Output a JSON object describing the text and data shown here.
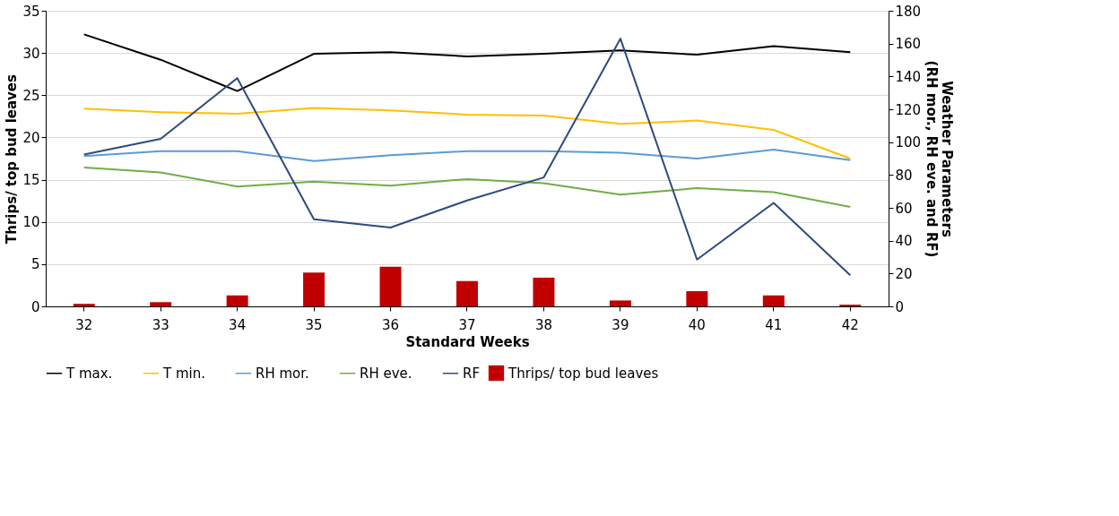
{
  "chart_data": {
    "type": "bar",
    "xlabel": "Standard Weeks",
    "ylabel": "Thrips/ top bud leaves",
    "y2label": "Weather Parameters (RH mor., RH eve. and RF)",
    "categories": [
      "32",
      "33",
      "34",
      "35",
      "36",
      "37",
      "38",
      "39",
      "40",
      "41",
      "42"
    ],
    "series": [
      {
        "name": "Thrips/ top bud leaves",
        "color": "#c00000",
        "values": [
          0.3,
          0.5,
          1.3,
          4.0,
          4.7,
          3.0,
          3.4,
          0.7,
          1.8,
          1.3,
          0.2
        ]
      },
      {
        "name": "T max.",
        "type": "line",
        "color": "#000000",
        "values": [
          32.2,
          29.2,
          25.5,
          29.9,
          30.1,
          29.6,
          29.9,
          30.3,
          29.8,
          30.8,
          30.1
        ]
      },
      {
        "name": "T min.",
        "type": "line",
        "color": "#ffc000",
        "values": [
          23.4,
          23.0,
          22.8,
          23.5,
          23.2,
          22.7,
          22.6,
          21.6,
          22.0,
          20.9,
          17.5
        ]
      },
      {
        "name": "RH mor.",
        "type": "line",
        "axis": "y2",
        "color": "#5b9bd5",
        "values": [
          91.5,
          94.5,
          94.5,
          88.5,
          92,
          94.5,
          94.5,
          93.5,
          90,
          95.5,
          89
        ]
      },
      {
        "name": "RH eve.",
        "type": "line",
        "axis": "y2",
        "color": "#70ad47",
        "values": [
          84.5,
          81.5,
          73,
          76,
          73.5,
          77.5,
          75,
          68,
          72,
          69.5,
          60.5
        ]
      },
      {
        "name": "RF",
        "type": "line",
        "axis": "y2",
        "color": "#2e4a7d",
        "values": [
          92.5,
          102,
          139,
          53,
          48,
          64.5,
          78.5,
          163,
          28.5,
          63,
          19
        ]
      }
    ],
    "ylim": [
      0,
      35
    ],
    "yticks": [
      0,
      5,
      10,
      15,
      20,
      25,
      30,
      35
    ],
    "y2lim": [
      0,
      180
    ],
    "y2ticks": [
      0,
      20,
      40,
      60,
      80,
      100,
      120,
      140,
      160,
      180
    ],
    "grid": "y",
    "legend": "bottom",
    "marker": "none",
    "line_style": "solid"
  }
}
